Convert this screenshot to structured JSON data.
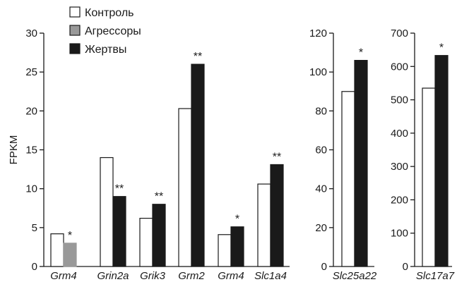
{
  "chart_data": {
    "type": "bar",
    "legend": [
      {
        "name": "Контроль",
        "color": "#ffffff"
      },
      {
        "name": "Агрессоры",
        "color": "#999999"
      },
      {
        "name": "Жертвы",
        "color": "#1a1a1a"
      }
    ],
    "legend_position": "top-left",
    "panels": [
      {
        "id": "left",
        "ylabel": "FPKM",
        "ylim": [
          0,
          30
        ],
        "yticks": [
          "0",
          "5",
          "10",
          "15",
          "20",
          "25",
          "30"
        ],
        "groups": [
          {
            "gene": "Grm4",
            "bars": [
              {
                "series": "Контроль",
                "value": 4.2
              },
              {
                "series": "Агрессоры",
                "value": 3.0
              }
            ],
            "significance": "*"
          },
          {
            "gene": "Grin2a",
            "bars": [
              {
                "series": "Контроль",
                "value": 14.0
              },
              {
                "series": "Жертвы",
                "value": 9.0
              }
            ],
            "significance": "**"
          },
          {
            "gene": "Grik3",
            "bars": [
              {
                "series": "Контроль",
                "value": 6.2
              },
              {
                "series": "Жертвы",
                "value": 8.0
              }
            ],
            "significance": "**"
          },
          {
            "gene": "Grm2",
            "bars": [
              {
                "series": "Контроль",
                "value": 20.3
              },
              {
                "series": "Жертвы",
                "value": 26.0
              }
            ],
            "significance": "**"
          },
          {
            "gene": "Grm4",
            "bars": [
              {
                "series": "Контроль",
                "value": 4.1
              },
              {
                "series": "Жертвы",
                "value": 5.1
              }
            ],
            "significance": "*"
          },
          {
            "gene": "Slc1a4",
            "bars": [
              {
                "series": "Контроль",
                "value": 10.6
              },
              {
                "series": "Жертвы",
                "value": 13.1
              }
            ],
            "significance": "**"
          }
        ]
      },
      {
        "id": "middle",
        "ylim": [
          0,
          120
        ],
        "yticks": [
          "0",
          "20",
          "40",
          "60",
          "80",
          "100",
          "120"
        ],
        "groups": [
          {
            "gene": "Slc25a22",
            "bars": [
              {
                "series": "Контроль",
                "value": 90
              },
              {
                "series": "Жертвы",
                "value": 106
              }
            ],
            "significance": "*"
          }
        ]
      },
      {
        "id": "right",
        "ylim": [
          0,
          700
        ],
        "yticks": [
          "0",
          "100",
          "200",
          "300",
          "400",
          "500",
          "600",
          "700"
        ],
        "groups": [
          {
            "gene": "Slc17a7",
            "bars": [
              {
                "series": "Контроль",
                "value": 535
              },
              {
                "series": "Жертвы",
                "value": 633
              }
            ],
            "significance": "*"
          }
        ]
      }
    ]
  }
}
